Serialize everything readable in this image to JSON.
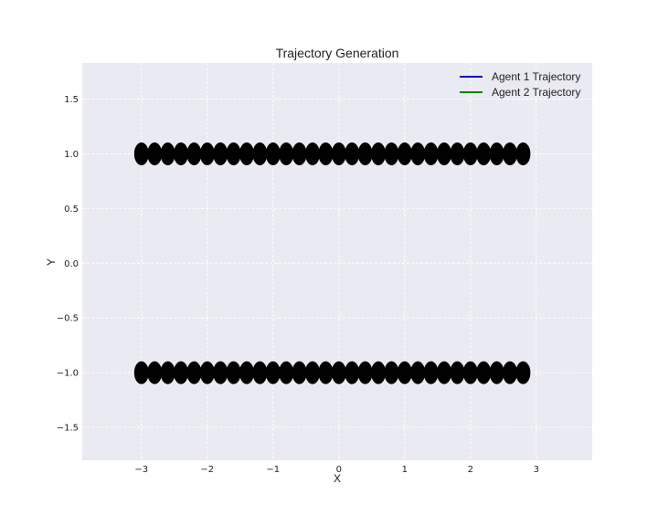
{
  "chart_data": {
    "type": "scatter",
    "title": "Trajectory Generation",
    "xlabel": "X",
    "ylabel": "Y",
    "xlim": [
      -3.9,
      3.85
    ],
    "ylim": [
      -1.8,
      1.83
    ],
    "xticks": [
      -3,
      -2,
      -1,
      0,
      1,
      2,
      3
    ],
    "xtick_labels": [
      "−3",
      "−2",
      "−1",
      "0",
      "1",
      "2",
      "3"
    ],
    "yticks": [
      -1.5,
      -1.0,
      -0.5,
      0.0,
      0.5,
      1.0,
      1.5
    ],
    "ytick_labels": [
      "−1.5",
      "−1.0",
      "−0.5",
      "0.0",
      "0.5",
      "1.0",
      "1.5"
    ],
    "grid": true,
    "legend_position": "top-right",
    "background_color": "#eaeaf2",
    "series": [
      {
        "name": "Agent 1  Trajectory",
        "color": "#0000cc",
        "marker_color": "#000000",
        "x": [
          -3.0,
          -2.8,
          -2.6,
          -2.4,
          -2.2,
          -2.0,
          -1.8,
          -1.6,
          -1.4,
          -1.2,
          -1.0,
          -0.8,
          -0.6,
          -0.4,
          -0.2,
          0.0,
          0.2,
          0.4,
          0.6,
          0.8,
          1.0,
          1.2,
          1.4,
          1.6,
          1.8,
          2.0,
          2.2,
          2.4,
          2.6,
          2.8
        ],
        "y": [
          1.0,
          1.0,
          1.0,
          1.0,
          1.0,
          1.0,
          1.0,
          1.0,
          1.0,
          1.0,
          1.0,
          1.0,
          1.0,
          1.0,
          1.0,
          1.0,
          1.0,
          1.0,
          1.0,
          1.0,
          1.0,
          1.0,
          1.0,
          1.0,
          1.0,
          1.0,
          1.0,
          1.0,
          1.0,
          1.0
        ]
      },
      {
        "name": "Agent 2 Trajectory",
        "color": "#008000",
        "marker_color": "#000000",
        "x": [
          -3.0,
          -2.8,
          -2.6,
          -2.4,
          -2.2,
          -2.0,
          -1.8,
          -1.6,
          -1.4,
          -1.2,
          -1.0,
          -0.8,
          -0.6,
          -0.4,
          -0.2,
          0.0,
          0.2,
          0.4,
          0.6,
          0.8,
          1.0,
          1.2,
          1.4,
          1.6,
          1.8,
          2.0,
          2.2,
          2.4,
          2.6,
          2.8
        ],
        "y": [
          -1.0,
          -1.0,
          -1.0,
          -1.0,
          -1.0,
          -1.0,
          -1.0,
          -1.0,
          -1.0,
          -1.0,
          -1.0,
          -1.0,
          -1.0,
          -1.0,
          -1.0,
          -1.0,
          -1.0,
          -1.0,
          -1.0,
          -1.0,
          -1.0,
          -1.0,
          -1.0,
          -1.0,
          -1.0,
          -1.0,
          -1.0,
          -1.0,
          -1.0,
          -1.0
        ]
      }
    ]
  }
}
